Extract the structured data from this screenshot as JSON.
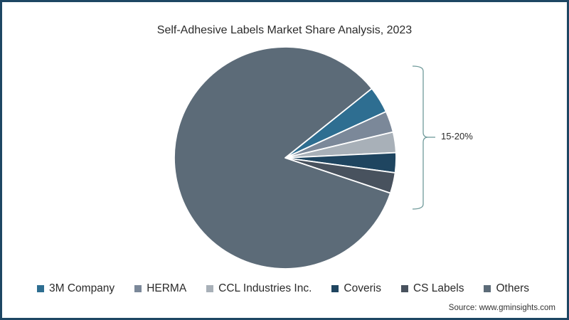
{
  "title": "Self-Adhesive Labels Market Share Analysis, 2023",
  "bracket_label": "15-20%",
  "source": "Source: www.gminsights.com",
  "legend": [
    {
      "label": "3M Company",
      "color": "#2e6e91"
    },
    {
      "label": "HERMA",
      "color": "#7b8899"
    },
    {
      "label": "CCL Industries Inc.",
      "color": "#a8b0b8"
    },
    {
      "label": "Coveris",
      "color": "#1f4560"
    },
    {
      "label": "CS Labels",
      "color": "#48525e"
    },
    {
      "label": "Others",
      "color": "#5c6b78"
    }
  ],
  "chart_data": {
    "type": "pie",
    "title": "Self-Adhesive Labels Market Share Analysis, 2023",
    "categories": [
      "3M Company",
      "HERMA",
      "CCL Industries Inc.",
      "Coveris",
      "CS Labels",
      "Others"
    ],
    "values": [
      3.9,
      3.1,
      3.0,
      2.9,
      3.0,
      84.1
    ],
    "unit": "%",
    "colors": [
      "#2e6e91",
      "#7b8899",
      "#a8b0b8",
      "#1f4560",
      "#48525e",
      "#5c6b78"
    ],
    "annotations": [
      {
        "text": "15-20%",
        "spans": [
          "3M Company",
          "HERMA",
          "CCL Industries Inc.",
          "Coveris",
          "CS Labels"
        ],
        "style": "curly-bracket"
      }
    ],
    "start_angle_deg": 38.7,
    "direction": "clockwise",
    "legend_position": "bottom",
    "source": "Source: www.gminsights.com"
  }
}
